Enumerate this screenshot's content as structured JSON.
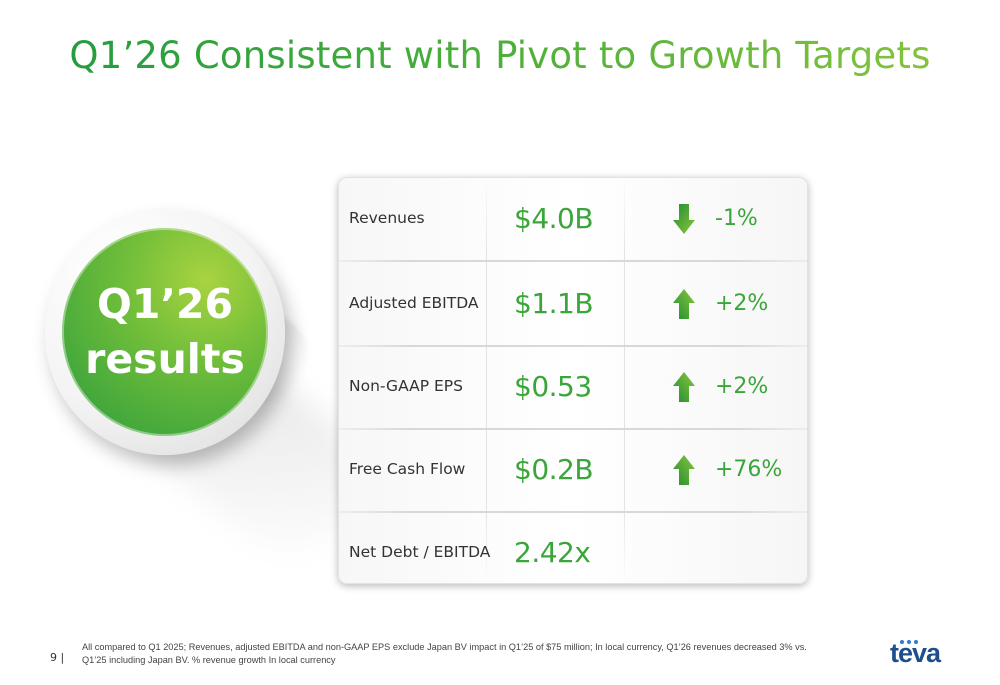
{
  "slide": {
    "title": "Q1’26 Consistent with Pivot to Growth Targets",
    "page_number": "9 |",
    "footnote": "All compared to Q1 2025; Revenues, adjusted EBITDA and non-GAAP EPS exclude Japan BV impact in Q1’25 of $75 million; In local currency, Q1’26 revenues decreased 3% vs. Q1’25 including Japan BV. % revenue growth In local currency",
    "logo_text": "teva"
  },
  "badge": {
    "line1": "Q1’26",
    "line2": "results"
  },
  "colors": {
    "accent_green": "#3aa639",
    "badge_green_dark": "#2a9c3c",
    "badge_green_light": "#a9d340",
    "logo_blue": "#1f4e8c"
  },
  "metrics": [
    {
      "label": "Revenues",
      "value": "$4.0B",
      "direction": "down",
      "change": "-1%"
    },
    {
      "label": "Adjusted EBITDA",
      "value": "$1.1B",
      "direction": "up",
      "change": "+2%"
    },
    {
      "label": "Non-GAAP EPS",
      "value": "$0.53",
      "direction": "up",
      "change": "+2%"
    },
    {
      "label": "Free Cash Flow",
      "value": "$0.2B",
      "direction": "up",
      "change": "+76%"
    },
    {
      "label": "Net Debt / EBITDA",
      "value": "2.42x",
      "direction": "",
      "change": ""
    }
  ]
}
